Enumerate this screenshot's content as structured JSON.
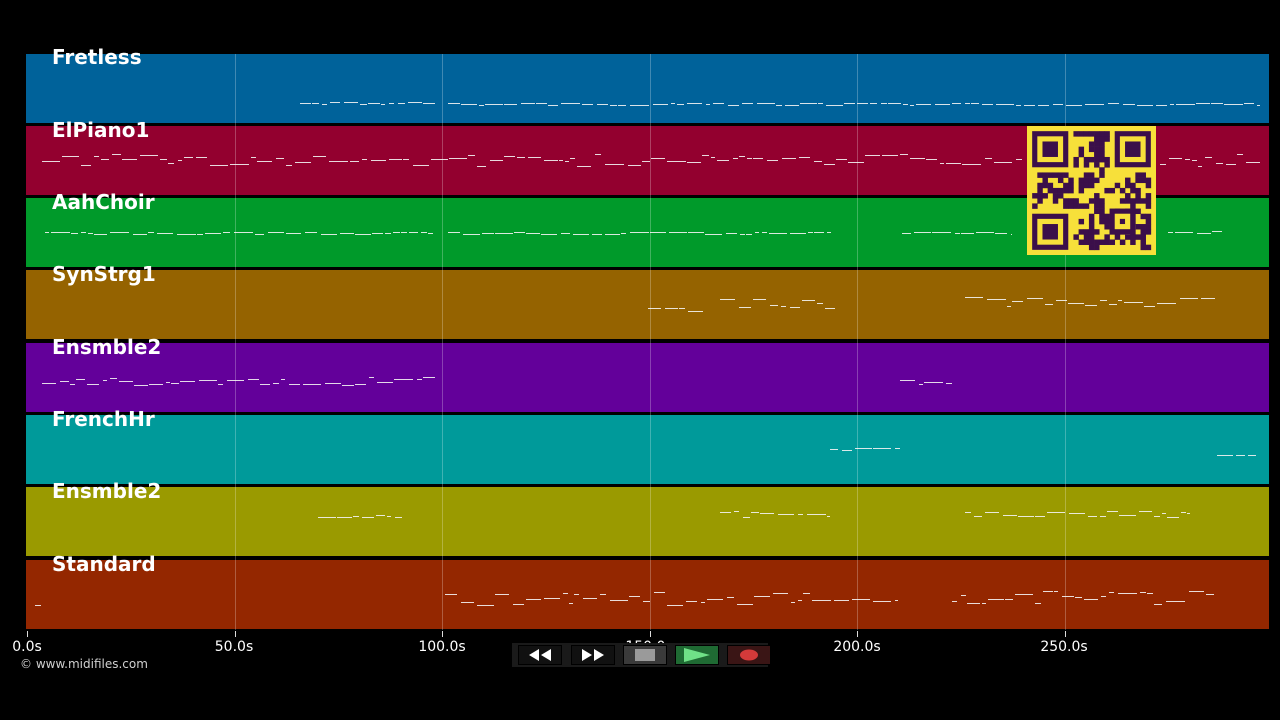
{
  "tracks": [
    {
      "name": "Fretless",
      "color": "#00629a"
    },
    {
      "name": "ElPiano1",
      "color": "#93002f"
    },
    {
      "name": "AahChoir",
      "color": "#009a2a"
    },
    {
      "name": "SynStrg1",
      "color": "#956300"
    },
    {
      "name": "Ensmble2",
      "color": "#63009a"
    },
    {
      "name": "FrenchHr",
      "color": "#009a9a"
    },
    {
      "name": "Ensmble2",
      "color": "#9a9a00"
    },
    {
      "name": "Standard",
      "color": "#942700"
    }
  ],
  "timeline": {
    "ticks": [
      "0.0s",
      "50.0s",
      "100.0s",
      "150.0s",
      "200.0s",
      "250.0s"
    ],
    "tick_seconds": [
      0,
      50,
      100,
      150,
      200,
      250
    ],
    "max_seconds": 299
  },
  "copyright": "© www.midifiles.com",
  "transport": {
    "rewind_icon": "rewind-icon",
    "fast_forward_icon": "fast-forward-icon",
    "stop_icon": "stop-icon",
    "play_icon": "play-icon",
    "record_icon": "record-icon"
  },
  "qr_code": "qr-code-icon"
}
